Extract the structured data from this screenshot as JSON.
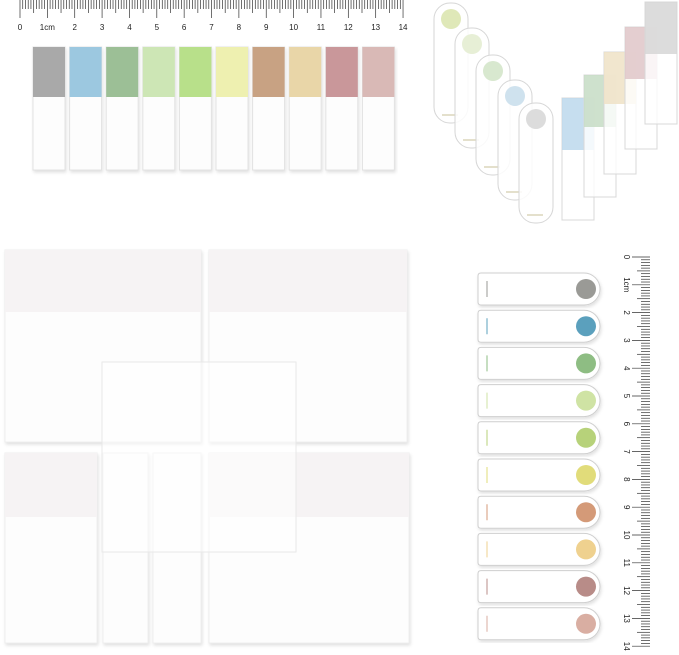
{
  "top_ruler": {
    "labels": [
      "0",
      "1cm",
      "2",
      "3",
      "4",
      "5",
      "6",
      "7",
      "8",
      "9",
      "10",
      "11",
      "12",
      "13",
      "14"
    ]
  },
  "side_ruler": {
    "labels": [
      "0",
      "1cm",
      "2",
      "3",
      "4",
      "5",
      "6",
      "7",
      "8",
      "9",
      "10",
      "11",
      "12",
      "13",
      "14"
    ]
  }
}
